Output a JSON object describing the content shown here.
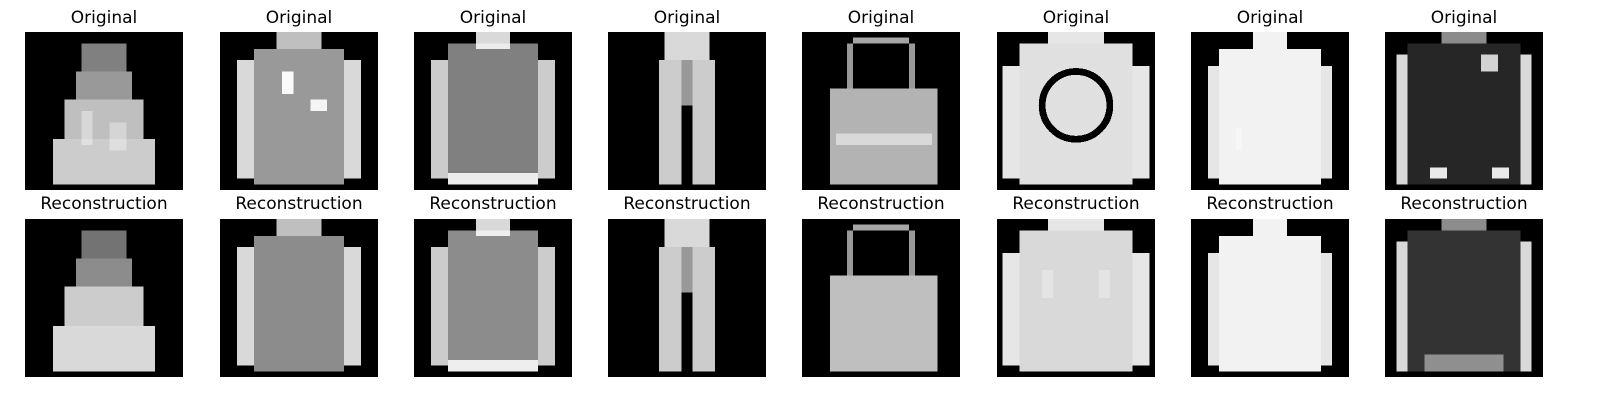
{
  "figure": {
    "row_titles": [
      "Original",
      "Reconstruction"
    ],
    "background_color": "#000000",
    "foreground_color": "#ffffff",
    "num_items": 8,
    "items": [
      {
        "depicts": "dress"
      },
      {
        "depicts": "pullover-with-graphics"
      },
      {
        "depicts": "shirt"
      },
      {
        "depicts": "trousers"
      },
      {
        "depicts": "handbag"
      },
      {
        "depicts": "sweater-with-circle-print"
      },
      {
        "depicts": "white-pullover"
      },
      {
        "depicts": "dark-jacket"
      }
    ]
  }
}
